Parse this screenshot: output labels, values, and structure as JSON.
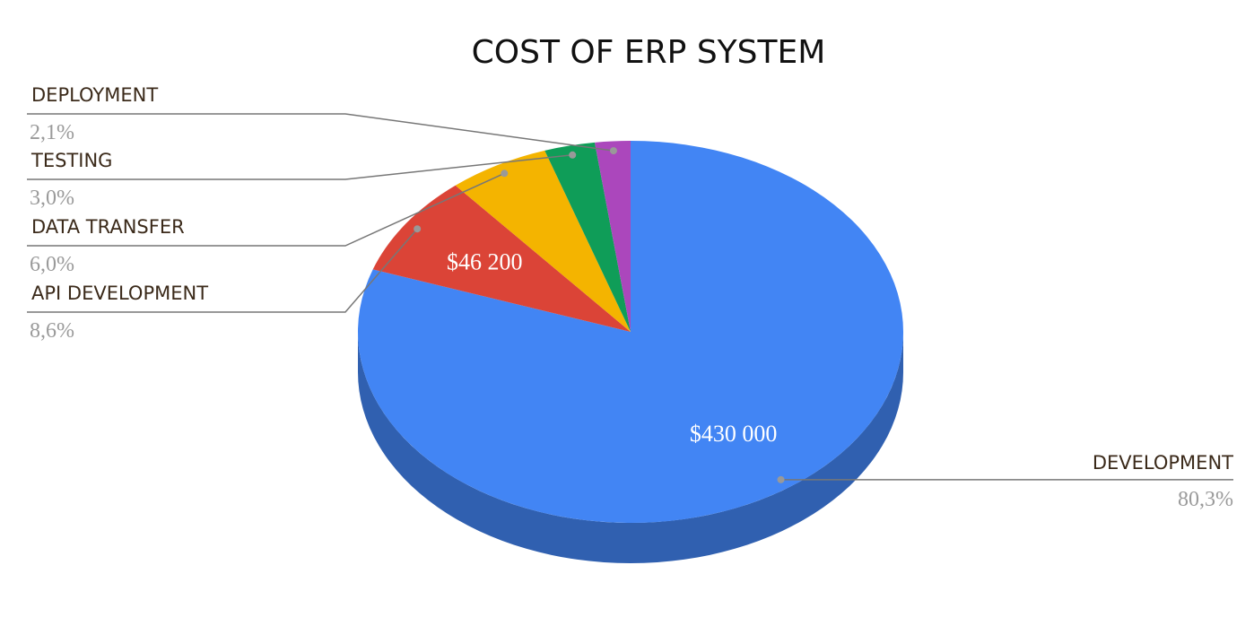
{
  "chart_data": {
    "type": "pie",
    "title": "COST OF ERP SYSTEM",
    "categories": [
      "DEVELOPMENT",
      "API DEVELOPMENT",
      "DATA TRANSFER",
      "TESTING",
      "DEPLOYMENT"
    ],
    "values": [
      80.3,
      8.6,
      6.0,
      3.0,
      2.1
    ],
    "value_labels": [
      "80,3%",
      "8,6%",
      "6,0%",
      "3,0%",
      "2,1%"
    ],
    "amounts": [
      430000,
      46200,
      null,
      null,
      null
    ],
    "amount_labels": [
      "$430 000",
      "$46 200",
      null,
      null,
      null
    ],
    "colors": [
      "#4285f4",
      "#db4437",
      "#f4b400",
      "#0f9d58",
      "#ab47bc"
    ]
  }
}
